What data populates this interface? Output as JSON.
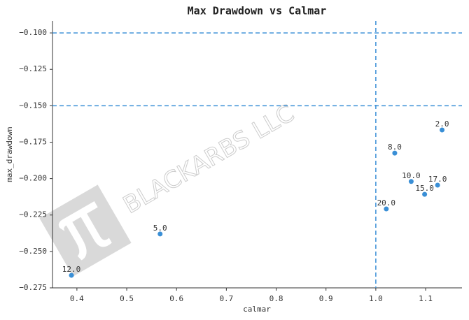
{
  "chart_data": {
    "type": "scatter",
    "title": "Max Drawdown vs Calmar",
    "x_label": "calmar",
    "y_label": "max_drawdown",
    "watermark": "BLACKARBS LLC",
    "color": "#3a8fd6",
    "x": [
      0.389,
      0.567,
      1.021,
      1.038,
      1.071,
      1.098,
      1.124,
      1.133
    ],
    "y": [
      -0.2664,
      -0.238,
      -0.2208,
      -0.1825,
      -0.202,
      -0.2108,
      -0.2045,
      -0.1666
    ],
    "point_labels": [
      "12.0",
      "5.0",
      "20.0",
      "8.0",
      "10.0",
      "15.0",
      "17.0",
      "2.0"
    ],
    "hlines": [
      -0.1,
      -0.15
    ],
    "vlines": [
      1.0
    ],
    "xlim": [
      0.351,
      1.173
    ],
    "ylim": [
      -0.275,
      -0.0918
    ],
    "xticks": [
      0.4,
      0.5,
      0.6,
      0.7,
      0.8,
      0.9,
      {
        "value": 1.0,
        "label": "1.0"
      },
      1.1
    ],
    "yticks": [
      {
        "value": -0.1,
        "label": "−0.100"
      },
      {
        "value": -0.125,
        "label": "−0.125"
      },
      {
        "value": -0.15,
        "label": "−0.150"
      },
      {
        "value": -0.175,
        "label": "−0.175"
      },
      {
        "value": -0.2,
        "label": "−0.200"
      },
      {
        "value": -0.225,
        "label": "−0.225"
      },
      {
        "value": -0.25,
        "label": "−0.250"
      },
      {
        "value": -0.275,
        "label": "−0.275"
      }
    ]
  }
}
